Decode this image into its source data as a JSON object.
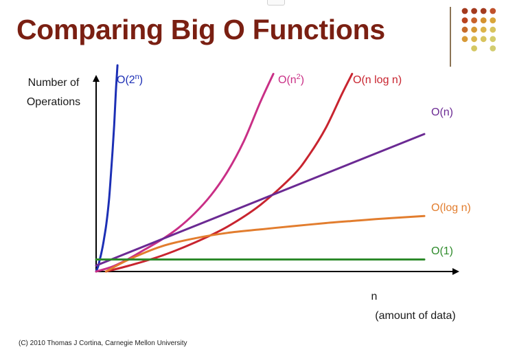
{
  "title": "Comparing Big O Functions",
  "footer": "(C) 2010 Thomas J Cortina, Carnegie Mellon University",
  "theme": {
    "title_color": "#7a1f12",
    "axis_color": "#000000"
  },
  "decoration": {
    "dot_colors": [
      [
        "#a33a1e",
        "#a33a1e",
        "#a33a1e",
        "#c0512b"
      ],
      [
        "#b8431f",
        "#c7612a",
        "#d4922f",
        "#d9a63a"
      ],
      [
        "#c56a2a",
        "#d59a35",
        "#dcb44a",
        "#d8c45e"
      ],
      [
        "#d79a38",
        "#dab74d",
        "#d8c45e",
        "#d4cc6b"
      ],
      [
        "",
        "#d4c762",
        "",
        "#d2cc70"
      ]
    ]
  },
  "chart_data": {
    "type": "line",
    "ylabel": "Number of Operations",
    "xlabel": "n (amount of data)",
    "grid": false,
    "x_ticks": [],
    "y_ticks": [],
    "note": "",
    "series": [
      {
        "name": "O(2ⁿ)",
        "label_parts": [
          "O(2",
          "n",
          ")"
        ],
        "color": "#1c2fb5",
        "points": [
          [
            0,
            0
          ],
          [
            0.006,
            0.03
          ],
          [
            0.01,
            0.061
          ],
          [
            0.015,
            0.1
          ],
          [
            0.02,
            0.146
          ],
          [
            0.025,
            0.2
          ],
          [
            0.03,
            0.26
          ],
          [
            0.035,
            0.337
          ],
          [
            0.04,
            0.432
          ],
          [
            0.045,
            0.562
          ],
          [
            0.05,
            0.699
          ],
          [
            0.055,
            0.852
          ],
          [
            0.06,
            1.044
          ],
          [
            0.065,
            1.2
          ]
        ]
      },
      {
        "name": "O(n²)",
        "label_parts": [
          "O(n",
          "2",
          ")"
        ],
        "color": "#c92f86",
        "points": [
          [
            0,
            0
          ],
          [
            0.05,
            0.029
          ],
          [
            0.1,
            0.075
          ],
          [
            0.15,
            0.13
          ],
          [
            0.2,
            0.186
          ],
          [
            0.25,
            0.253
          ],
          [
            0.3,
            0.338
          ],
          [
            0.35,
            0.444
          ],
          [
            0.4,
            0.581
          ],
          [
            0.45,
            0.758
          ],
          [
            0.5,
            0.985
          ],
          [
            0.54,
            1.15
          ]
        ]
      },
      {
        "name": "O(n log n)",
        "label_parts": [
          "O(n log n)"
        ],
        "color": "#c8242f",
        "points": [
          [
            0.03,
            0
          ],
          [
            0.1,
            0.034
          ],
          [
            0.2,
            0.092
          ],
          [
            0.3,
            0.168
          ],
          [
            0.4,
            0.261
          ],
          [
            0.5,
            0.387
          ],
          [
            0.6,
            0.559
          ],
          [
            0.65,
            0.681
          ],
          [
            0.7,
            0.836
          ],
          [
            0.75,
            1.037
          ],
          [
            0.78,
            1.15
          ]
        ]
      },
      {
        "name": "O(n)",
        "label_parts": [
          "O(n)"
        ],
        "color": "#6b2a93",
        "points": [
          [
            0,
            0.035
          ],
          [
            1,
            0.8
          ]
        ]
      },
      {
        "name": "O(log n)",
        "label_parts": [
          "O(log n)"
        ],
        "color": "#e27d2e",
        "points": [
          [
            0.03,
            0
          ],
          [
            0.1,
            0.07
          ],
          [
            0.2,
            0.147
          ],
          [
            0.3,
            0.193
          ],
          [
            0.4,
            0.225
          ],
          [
            0.5,
            0.245
          ],
          [
            0.6,
            0.264
          ],
          [
            0.7,
            0.282
          ],
          [
            0.8,
            0.297
          ],
          [
            0.9,
            0.311
          ],
          [
            1,
            0.323
          ]
        ]
      },
      {
        "name": "O(1)",
        "label_parts": [
          "O(1)"
        ],
        "color": "#2d8a2a",
        "points": [
          [
            0,
            0.07
          ],
          [
            1,
            0.07
          ]
        ]
      }
    ]
  }
}
